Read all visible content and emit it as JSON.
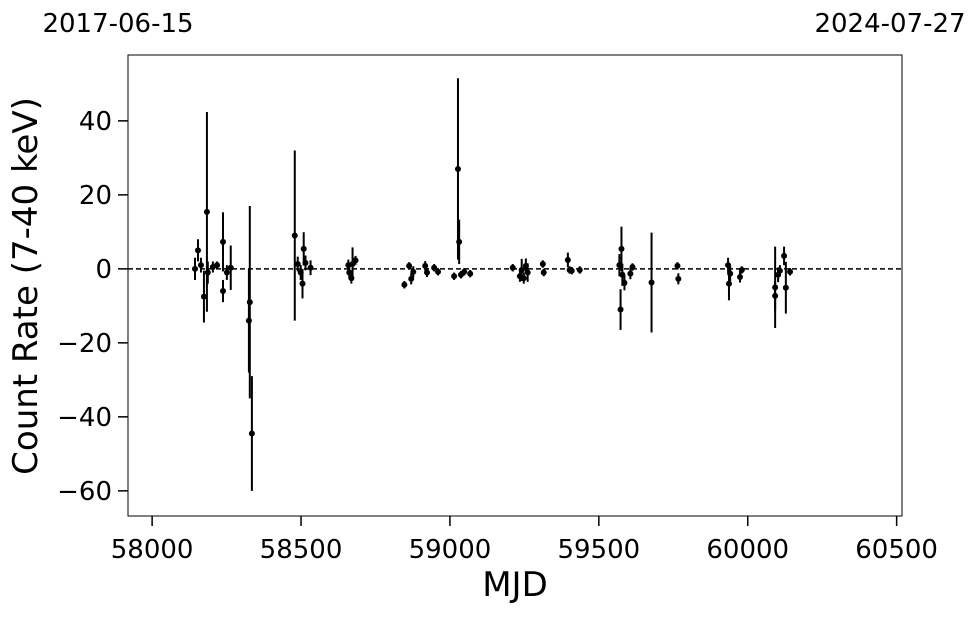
{
  "chart_data": {
    "type": "errorbar-scatter",
    "xlabel": "MJD",
    "ylabel": "Count Rate (7-40 keV)",
    "xlim": [
      57919,
      60518
    ],
    "ylim": [
      -66.8,
      57.8
    ],
    "xticks": [
      58000,
      58500,
      59000,
      59500,
      60000,
      60500
    ],
    "yticks": [
      {
        "value": -60,
        "label": "−60"
      },
      {
        "value": -40,
        "label": "−40"
      },
      {
        "value": -20,
        "label": "−20"
      },
      0,
      20,
      40
    ],
    "x2ticks": [
      {
        "value": 57919,
        "label": "2017-06-15"
      },
      {
        "value": 60518,
        "label": "2024-07-27"
      }
    ],
    "reference_line": 0,
    "color": "#000000",
    "x": [
      58144,
      58154,
      58164,
      58174,
      58184,
      58187,
      58204,
      58218,
      58238,
      58238,
      58251,
      58264,
      58325,
      58328,
      58335,
      58479,
      58489,
      58499,
      58505,
      58509,
      58515,
      58532,
      58659,
      58662,
      58669,
      58673,
      58683,
      58847,
      58863,
      58870,
      58877,
      58917,
      58923,
      58947,
      58960,
      59014,
      59027,
      59031,
      59037,
      59048,
      59068,
      59211,
      59235,
      59241,
      59248,
      59255,
      59261,
      59312,
      59315,
      59396,
      59402,
      59409,
      59436,
      59569,
      59573,
      59576,
      59579,
      59586,
      59606,
      59613,
      59677,
      59764,
      59767,
      59934,
      59937,
      59941,
      59974,
      59980,
      60092,
      60092,
      60102,
      60108,
      60122,
      60128,
      60142
    ],
    "values": [
      0,
      5,
      1,
      -7.5,
      15.4,
      -1,
      0.5,
      1,
      7.3,
      -6,
      -1,
      0.3,
      -14,
      -9,
      -44.5,
      9,
      1.3,
      -1,
      -4,
      5.4,
      1.6,
      0.3,
      1,
      -1,
      -2.5,
      1.3,
      2.3,
      -4.3,
      0.8,
      -2.7,
      -0.8,
      0.8,
      -1,
      0.3,
      -0.8,
      -2,
      27,
      7.3,
      -1.6,
      -0.8,
      -1.3,
      0.3,
      -2,
      -0.3,
      -2.5,
      0.8,
      -1,
      1.3,
      -1,
      2.4,
      -0.3,
      -0.5,
      -0.3,
      1,
      -11,
      5.4,
      -1.6,
      -3.8,
      -1.3,
      0.5,
      -3.7,
      0.8,
      -2.7,
      1,
      -4,
      -1.3,
      -2.2,
      -0.3,
      -5,
      -7.3,
      -1.6,
      -0.5,
      3.5,
      -5.1,
      -0.8
    ],
    "errors": [
      3,
      3,
      2,
      7,
      27,
      3,
      1.5,
      1,
      8,
      3,
      2,
      6,
      14,
      26,
      15.5,
      23,
      2,
      2,
      4,
      4.5,
      2,
      2,
      1.5,
      1.5,
      1.5,
      4.5,
      1.2,
      1,
      1,
      1.5,
      1.5,
      1.3,
      1.2,
      1,
      1,
      1,
      24.5,
      6,
      1,
      1,
      1,
      1,
      1.5,
      3,
      1.5,
      2,
      2.5,
      1,
      1,
      2,
      1,
      1,
      1,
      3,
      5.5,
      6,
      3,
      2,
      1.5,
      1,
      13.5,
      1,
      1.5,
      2,
      4.5,
      2,
      1.5,
      1,
      11,
      4,
      2,
      1.5,
      2.5,
      7,
      1
    ]
  }
}
